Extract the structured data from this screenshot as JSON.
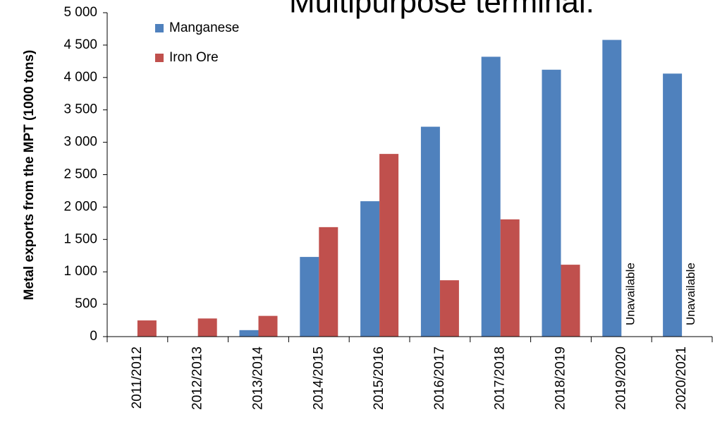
{
  "chart_data": {
    "type": "bar",
    "title": "Multipurpose terminal:",
    "y_label": "Metal exports from the MPT (1000 tons)",
    "categories": [
      "2011/2012",
      "2012/2013",
      "2013/2014",
      "2014/2015",
      "2015/2016",
      "2016/2017",
      "2017/2018",
      "2018/2019",
      "2019/2020",
      "2020/2021"
    ],
    "series": [
      {
        "name": "Manganese",
        "color": "#4f81bd",
        "values": [
          0,
          0,
          100,
          1230,
          2090,
          3240,
          4320,
          4120,
          4580,
          4060
        ]
      },
      {
        "name": "Iron Ore",
        "color": "#c0504d",
        "values": [
          250,
          280,
          320,
          1690,
          2820,
          870,
          1810,
          1110,
          null,
          null
        ]
      }
    ],
    "annotations": [
      "Unavailable",
      "Unavailable"
    ],
    "ylim": [
      0,
      5000
    ],
    "yticks": [
      0,
      500,
      {
        "value": 1000,
        "label": "1 000"
      },
      {
        "value": 1500,
        "label": "1 500"
      },
      {
        "value": 2000,
        "label": "2 000"
      },
      {
        "value": 2500,
        "label": "2 500"
      },
      {
        "value": 3000,
        "label": "3 000"
      },
      {
        "value": 3500,
        "label": "3 500"
      },
      {
        "value": 4000,
        "label": "4 000"
      },
      {
        "value": 4500,
        "label": "4 500"
      },
      {
        "value": 5000,
        "label": "5 000"
      }
    ],
    "grid": false,
    "legend": "top-left"
  }
}
